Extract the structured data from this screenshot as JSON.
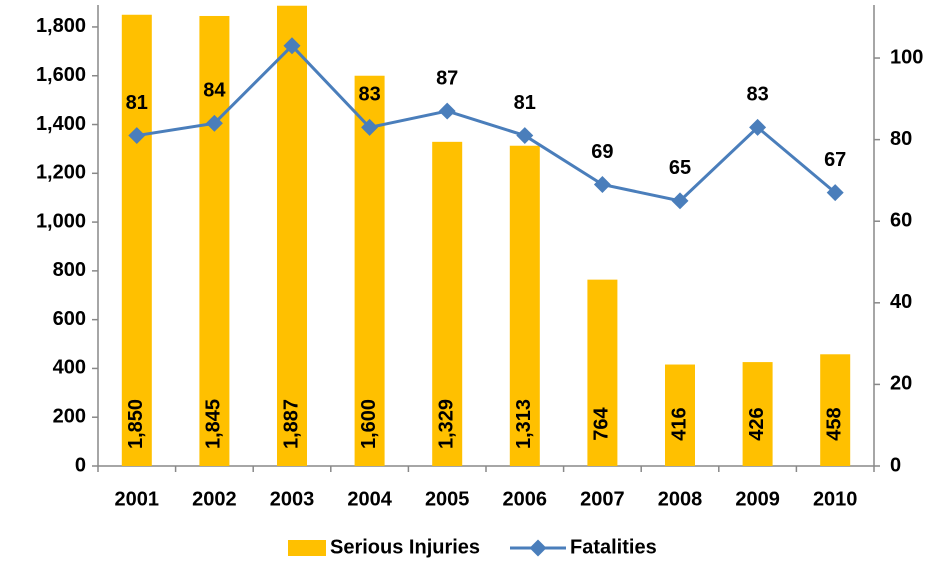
{
  "chart_data": {
    "type": "bar-line",
    "categories": [
      "2001",
      "2002",
      "2003",
      "2004",
      "2005",
      "2006",
      "2007",
      "2008",
      "2009",
      "2010"
    ],
    "series": [
      {
        "name": "Serious Injuries",
        "type": "bar",
        "color": "#ffc000",
        "axis": "y",
        "values": [
          1850,
          1845,
          1887,
          1600,
          1329,
          1313,
          764,
          416,
          426,
          458
        ],
        "value_labels": [
          "1,850",
          "1,845",
          "1,887",
          "1,600",
          "1,329",
          "1,313",
          "764",
          "416",
          "426",
          "458"
        ]
      },
      {
        "name": "Fatalities",
        "type": "line",
        "color": "#4a7ebb",
        "axis": "y2",
        "values": [
          81,
          84,
          103,
          83,
          87,
          81,
          69,
          65,
          83,
          67
        ],
        "value_labels": [
          "81",
          "84",
          null,
          "83",
          "87",
          "81",
          "69",
          "65",
          "83",
          "67"
        ]
      }
    ],
    "ylim": [
      0,
      1890
    ],
    "yticks": [
      0,
      200,
      400,
      600,
      800,
      {
        "value": 1000,
        "label": "1,000"
      },
      {
        "value": 1200,
        "label": "1,200"
      },
      {
        "value": 1400,
        "label": "1,400"
      },
      {
        "value": 1600,
        "label": "1,600"
      },
      {
        "value": 1800,
        "label": "1,800"
      }
    ],
    "y2lim": [
      0,
      113
    ],
    "y2ticks": [
      0,
      20,
      40,
      60,
      80,
      100
    ],
    "legend": "bottom"
  }
}
